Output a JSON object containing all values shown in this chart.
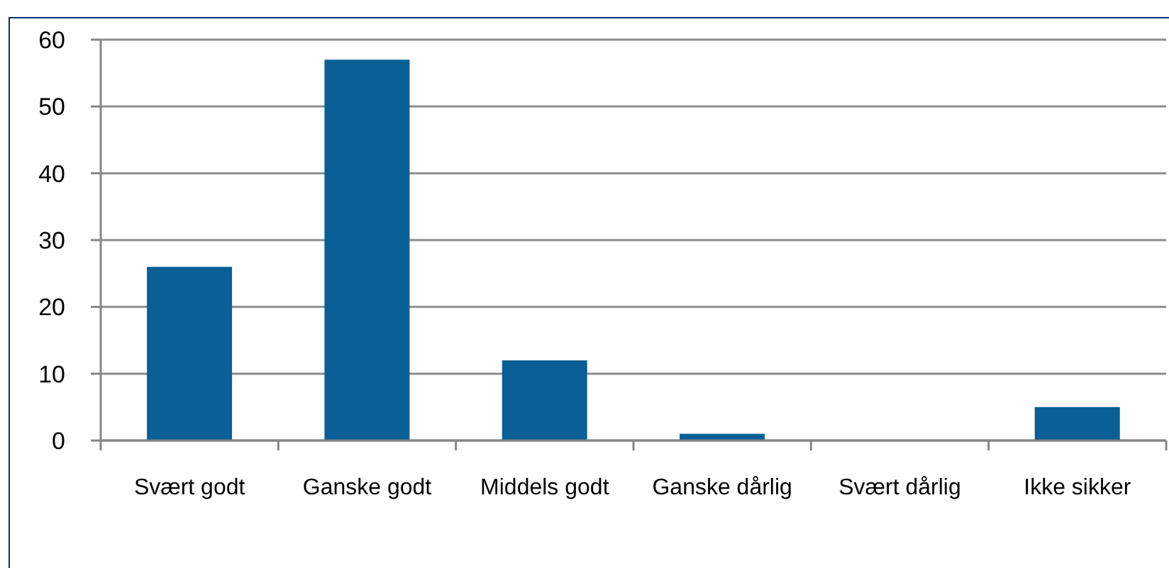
{
  "chart_data": {
    "type": "bar",
    "categories": [
      "Svært godt",
      "Ganske godt",
      "Middels godt",
      "Ganske dårlig",
      "Svært dårlig",
      "Ikke sikker"
    ],
    "values": [
      26,
      57,
      12,
      1,
      0,
      5
    ],
    "color": "#0a6096",
    "ylim": [
      0,
      60
    ],
    "yticks": [
      0,
      10,
      20,
      30,
      40,
      50,
      60
    ],
    "grid": "y"
  }
}
